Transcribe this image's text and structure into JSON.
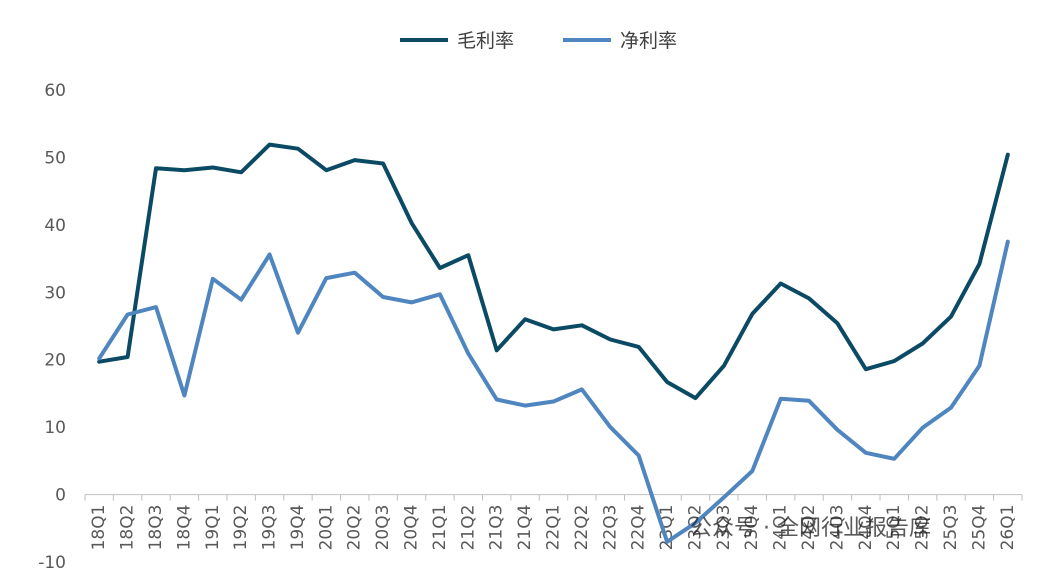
{
  "chart_data": {
    "type": "line",
    "categories": [
      "18Q1",
      "18Q2",
      "18Q3",
      "18Q4",
      "19Q1",
      "19Q2",
      "19Q3",
      "19Q4",
      "20Q1",
      "20Q2",
      "20Q3",
      "20Q4",
      "21Q1",
      "21Q2",
      "21Q3",
      "21Q4",
      "22Q1",
      "22Q2",
      "22Q3",
      "22Q4",
      "23Q1",
      "23Q2",
      "23Q3",
      "23Q4",
      "24Q1",
      "24Q2",
      "24Q3",
      "24Q4",
      "25Q1",
      "25Q2",
      "25Q3",
      "25Q4",
      "26Q1"
    ],
    "series": [
      {
        "name": "毛利率",
        "color": "#0b4a64",
        "values": [
          19.7,
          20.4,
          48.4,
          48.1,
          48.5,
          47.8,
          51.9,
          51.3,
          48.1,
          49.6,
          49.1,
          40.3,
          33.6,
          35.5,
          21.4,
          26.0,
          24.5,
          25.1,
          23.0,
          21.9,
          16.7,
          14.3,
          19.1,
          26.8,
          31.3,
          29.1,
          25.4,
          18.6,
          19.8,
          22.4,
          26.4,
          34.2,
          50.4
        ]
      },
      {
        "name": "净利率",
        "color": "#4f86c0",
        "values": [
          20.2,
          26.7,
          27.8,
          14.7,
          32.0,
          28.9,
          35.6,
          24.0,
          32.1,
          32.9,
          29.3,
          28.5,
          29.7,
          20.9,
          14.1,
          13.2,
          13.8,
          15.6,
          10.0,
          5.8,
          -7.0,
          -4.2,
          -0.4,
          3.5,
          14.2,
          13.9,
          9.6,
          6.2,
          5.3,
          9.9,
          12.9,
          19.1,
          37.5
        ]
      }
    ],
    "ylim": [
      -10,
      60
    ],
    "yticks": [
      "60",
      "50",
      "40",
      "30",
      "20",
      "10",
      "0",
      "-10"
    ],
    "legend": "top-center",
    "grid": false
  },
  "watermark": "公众号 · 全网行业报告库"
}
